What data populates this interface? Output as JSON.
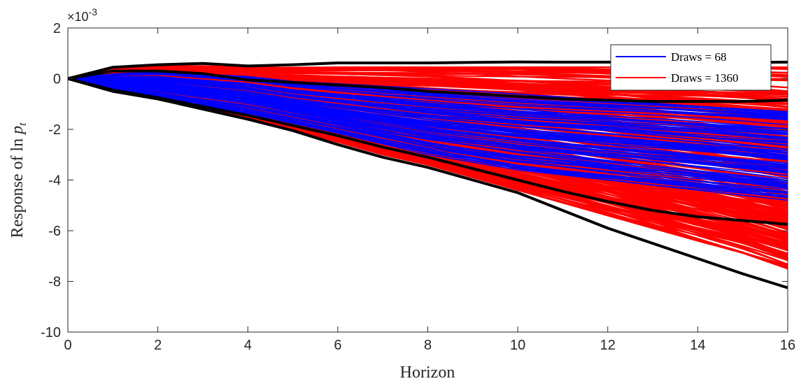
{
  "chart_data": {
    "type": "line",
    "xlabel": "Horizon",
    "ylabel_prefix": "Response of ln ",
    "ylabel_var": "p",
    "ylabel_sub": "t",
    "y_multiplier": "×10",
    "y_exponent": "-3",
    "xlim": [
      0,
      16
    ],
    "ylim": [
      -10,
      2
    ],
    "xticks": [
      "0",
      "2",
      "4",
      "6",
      "8",
      "10",
      "12",
      "14",
      "16"
    ],
    "yticks": [
      "-10",
      "-8",
      "-6",
      "-4",
      "-2",
      "0",
      "2"
    ],
    "grid": false,
    "legend_position": "top-right",
    "colors": {
      "draws_68": "#0000ff",
      "draws_1360": "#ff0000",
      "bounds": "#000000"
    },
    "series": [
      {
        "name": "Draws = 68",
        "color": "#0000ff",
        "description": "68 impulse response draws",
        "upper_envelope": [
          0,
          0.2,
          0.3,
          0.2,
          0.1,
          -0.1,
          -0.2,
          -0.3,
          -0.4,
          -0.5,
          -0.6,
          -0.7,
          -0.8,
          -0.9,
          -1.0,
          -1.1,
          -1.2
        ],
        "lower_envelope": [
          0,
          -0.5,
          -0.8,
          -1.1,
          -1.4,
          -1.8,
          -2.2,
          -2.6,
          -3.0,
          -3.3,
          -3.6,
          -3.8,
          -4.0,
          -4.2,
          -4.4,
          -4.6,
          -4.8
        ]
      },
      {
        "name": "Draws = 1360",
        "color": "#ff0000",
        "description": "1360 impulse response draws",
        "upper_envelope": [
          0,
          0.4,
          0.5,
          0.5,
          0.45,
          0.45,
          0.45,
          0.45,
          0.45,
          0.45,
          0.45,
          0.45,
          0.45,
          0.45,
          0.45,
          0.45,
          0.45
        ],
        "lower_envelope": [
          0,
          -0.5,
          -0.8,
          -1.2,
          -1.6,
          -2.0,
          -2.5,
          -3.0,
          -3.4,
          -3.9,
          -4.4,
          -4.9,
          -5.4,
          -5.9,
          -6.4,
          -6.9,
          -7.5
        ]
      }
    ],
    "bound_lines": [
      {
        "x": [
          0,
          1,
          2,
          3,
          4,
          5,
          6,
          7,
          8,
          9,
          10,
          11,
          12,
          13,
          14,
          15,
          16
        ],
        "y": [
          0,
          0.45,
          0.55,
          0.6,
          0.5,
          0.55,
          0.62,
          0.62,
          0.62,
          0.64,
          0.66,
          0.65,
          0.65,
          0.65,
          0.64,
          0.64,
          0.65
        ]
      },
      {
        "x": [
          0,
          1,
          2,
          3,
          4,
          5,
          6,
          7,
          8,
          9,
          10,
          11,
          12,
          13,
          14,
          15,
          16
        ],
        "y": [
          0,
          0.3,
          0.3,
          0.2,
          -0.05,
          -0.15,
          -0.25,
          -0.35,
          -0.5,
          -0.6,
          -0.7,
          -0.8,
          -0.85,
          -0.9,
          -0.9,
          -0.9,
          -0.85
        ]
      },
      {
        "x": [
          0,
          1,
          2,
          3,
          4,
          5,
          6,
          7,
          8,
          9,
          10,
          11,
          12,
          13,
          14,
          15,
          16
        ],
        "y": [
          0,
          -0.5,
          -0.8,
          -1.2,
          -1.6,
          -2.05,
          -2.6,
          -3.1,
          -3.5,
          -4.0,
          -4.5,
          -5.2,
          -5.9,
          -6.5,
          -7.1,
          -7.7,
          -8.25
        ]
      },
      {
        "x": [
          0,
          1,
          2,
          3,
          4,
          5,
          6,
          7,
          8,
          9,
          10,
          11,
          12,
          13,
          14,
          15,
          16
        ],
        "y": [
          0,
          -0.45,
          -0.75,
          -1.1,
          -1.45,
          -1.85,
          -2.25,
          -2.7,
          -3.1,
          -3.55,
          -4.0,
          -4.45,
          -4.85,
          -5.2,
          -5.45,
          -5.6,
          -5.75
        ]
      }
    ]
  }
}
